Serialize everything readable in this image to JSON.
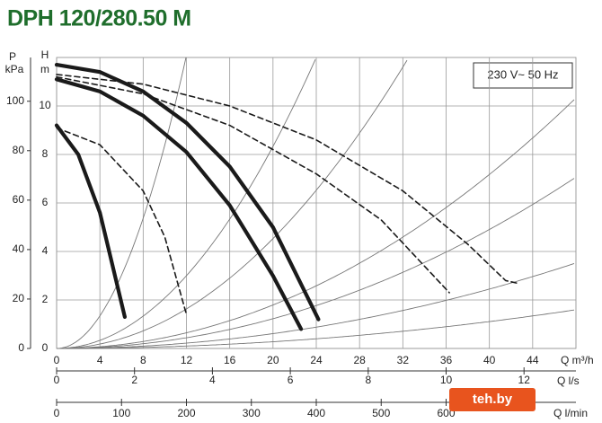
{
  "chart_data": {
    "type": "line",
    "title": "DPH 120/280.50 M",
    "annotation": "230 V~ 50 Hz",
    "watermark": "teh.by",
    "x_label": "Q m³/h",
    "xlim": [
      0,
      48
    ],
    "xticks": [
      0,
      4,
      8,
      12,
      16,
      20,
      24,
      28,
      32,
      36,
      40,
      44
    ],
    "x2_label": "Q l/s",
    "x2lim": [
      0,
      13.333
    ],
    "x2ticks": [
      0,
      2,
      4,
      6,
      8,
      10,
      12
    ],
    "x3_label": "Q l/min",
    "x3lim": [
      0,
      800
    ],
    "x3ticks": [
      0,
      100,
      200,
      300,
      400,
      500,
      600
    ],
    "y_label": "H",
    "y_unit": "m",
    "ylim": [
      0,
      12
    ],
    "yticks": [
      0,
      2,
      4,
      6,
      8,
      10
    ],
    "y2_label": "P",
    "y2_unit": "kPa",
    "y2lim": [
      0,
      117.7
    ],
    "y2ticks": [
      0,
      20,
      40,
      60,
      80,
      100
    ],
    "grid": true,
    "series": [
      {
        "color": "#1a1a1a",
        "dashed": false,
        "x": [
          0,
          4,
          8,
          12,
          16,
          20,
          24.2
        ],
        "values": [
          11.7,
          11.4,
          10.6,
          9.3,
          7.5,
          5.0,
          1.2
        ]
      },
      {
        "color": "#1a1a1a",
        "dashed": false,
        "x": [
          0,
          4,
          8,
          12,
          16,
          20,
          22.6
        ],
        "values": [
          11.1,
          10.6,
          9.6,
          8.1,
          5.9,
          3.0,
          0.8
        ]
      },
      {
        "color": "#1a1a1a",
        "dashed": false,
        "x": [
          0,
          2,
          4,
          6.3
        ],
        "values": [
          9.2,
          8.0,
          5.6,
          1.3
        ]
      },
      {
        "color": "#1a1a1a",
        "dashed": true,
        "x": [
          0,
          8,
          16,
          24,
          32,
          38,
          41.5,
          42.5
        ],
        "values": [
          11.3,
          10.9,
          10.0,
          8.6,
          6.5,
          4.3,
          2.8,
          2.7
        ]
      },
      {
        "color": "#1a1a1a",
        "dashed": true,
        "x": [
          0,
          8,
          16,
          24,
          30,
          36.3
        ],
        "values": [
          11.2,
          10.5,
          9.2,
          7.2,
          5.3,
          2.3
        ]
      },
      {
        "color": "#1a1a1a",
        "dashed": true,
        "x": [
          0,
          4,
          8,
          10,
          12
        ],
        "values": [
          9.1,
          8.4,
          6.5,
          4.6,
          1.4
        ]
      }
    ]
  }
}
